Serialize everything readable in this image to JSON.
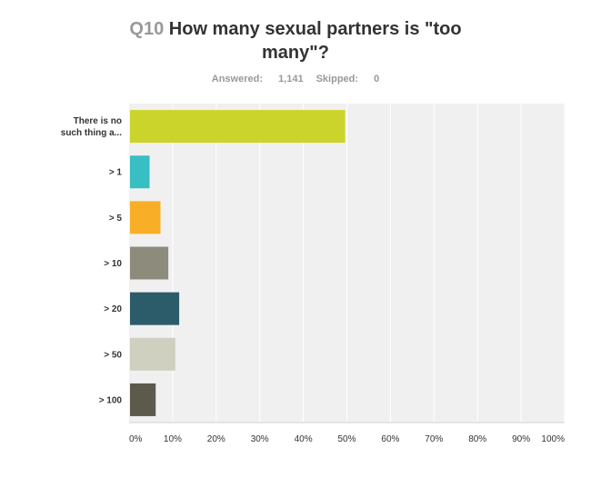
{
  "question": {
    "number": "Q10",
    "text": "How many sexual partners is \"too many\"?"
  },
  "stats": {
    "answered_label": "Answered:",
    "answered": "1,141",
    "skipped_label": "Skipped:",
    "skipped": "0"
  },
  "chart_data": {
    "type": "bar",
    "orientation": "horizontal",
    "categories": [
      [
        "There is no",
        "such thing a..."
      ],
      [
        "> 1"
      ],
      [
        "> 5"
      ],
      [
        "> 10"
      ],
      [
        "> 20"
      ],
      [
        "> 50"
      ],
      [
        "> 100"
      ]
    ],
    "values": [
      49.6,
      4.7,
      7.2,
      9.0,
      11.5,
      10.6,
      6.1
    ],
    "colors": [
      "#cbd42a",
      "#38bfc3",
      "#f8af27",
      "#8d8c7c",
      "#2c5c69",
      "#d0d0c1",
      "#5b5a4b"
    ],
    "xlim": [
      0,
      100
    ],
    "x_ticks": [
      "0%",
      "10%",
      "20%",
      "30%",
      "40%",
      "50%",
      "60%",
      "70%",
      "80%",
      "90%",
      "100%"
    ],
    "grid": true
  }
}
